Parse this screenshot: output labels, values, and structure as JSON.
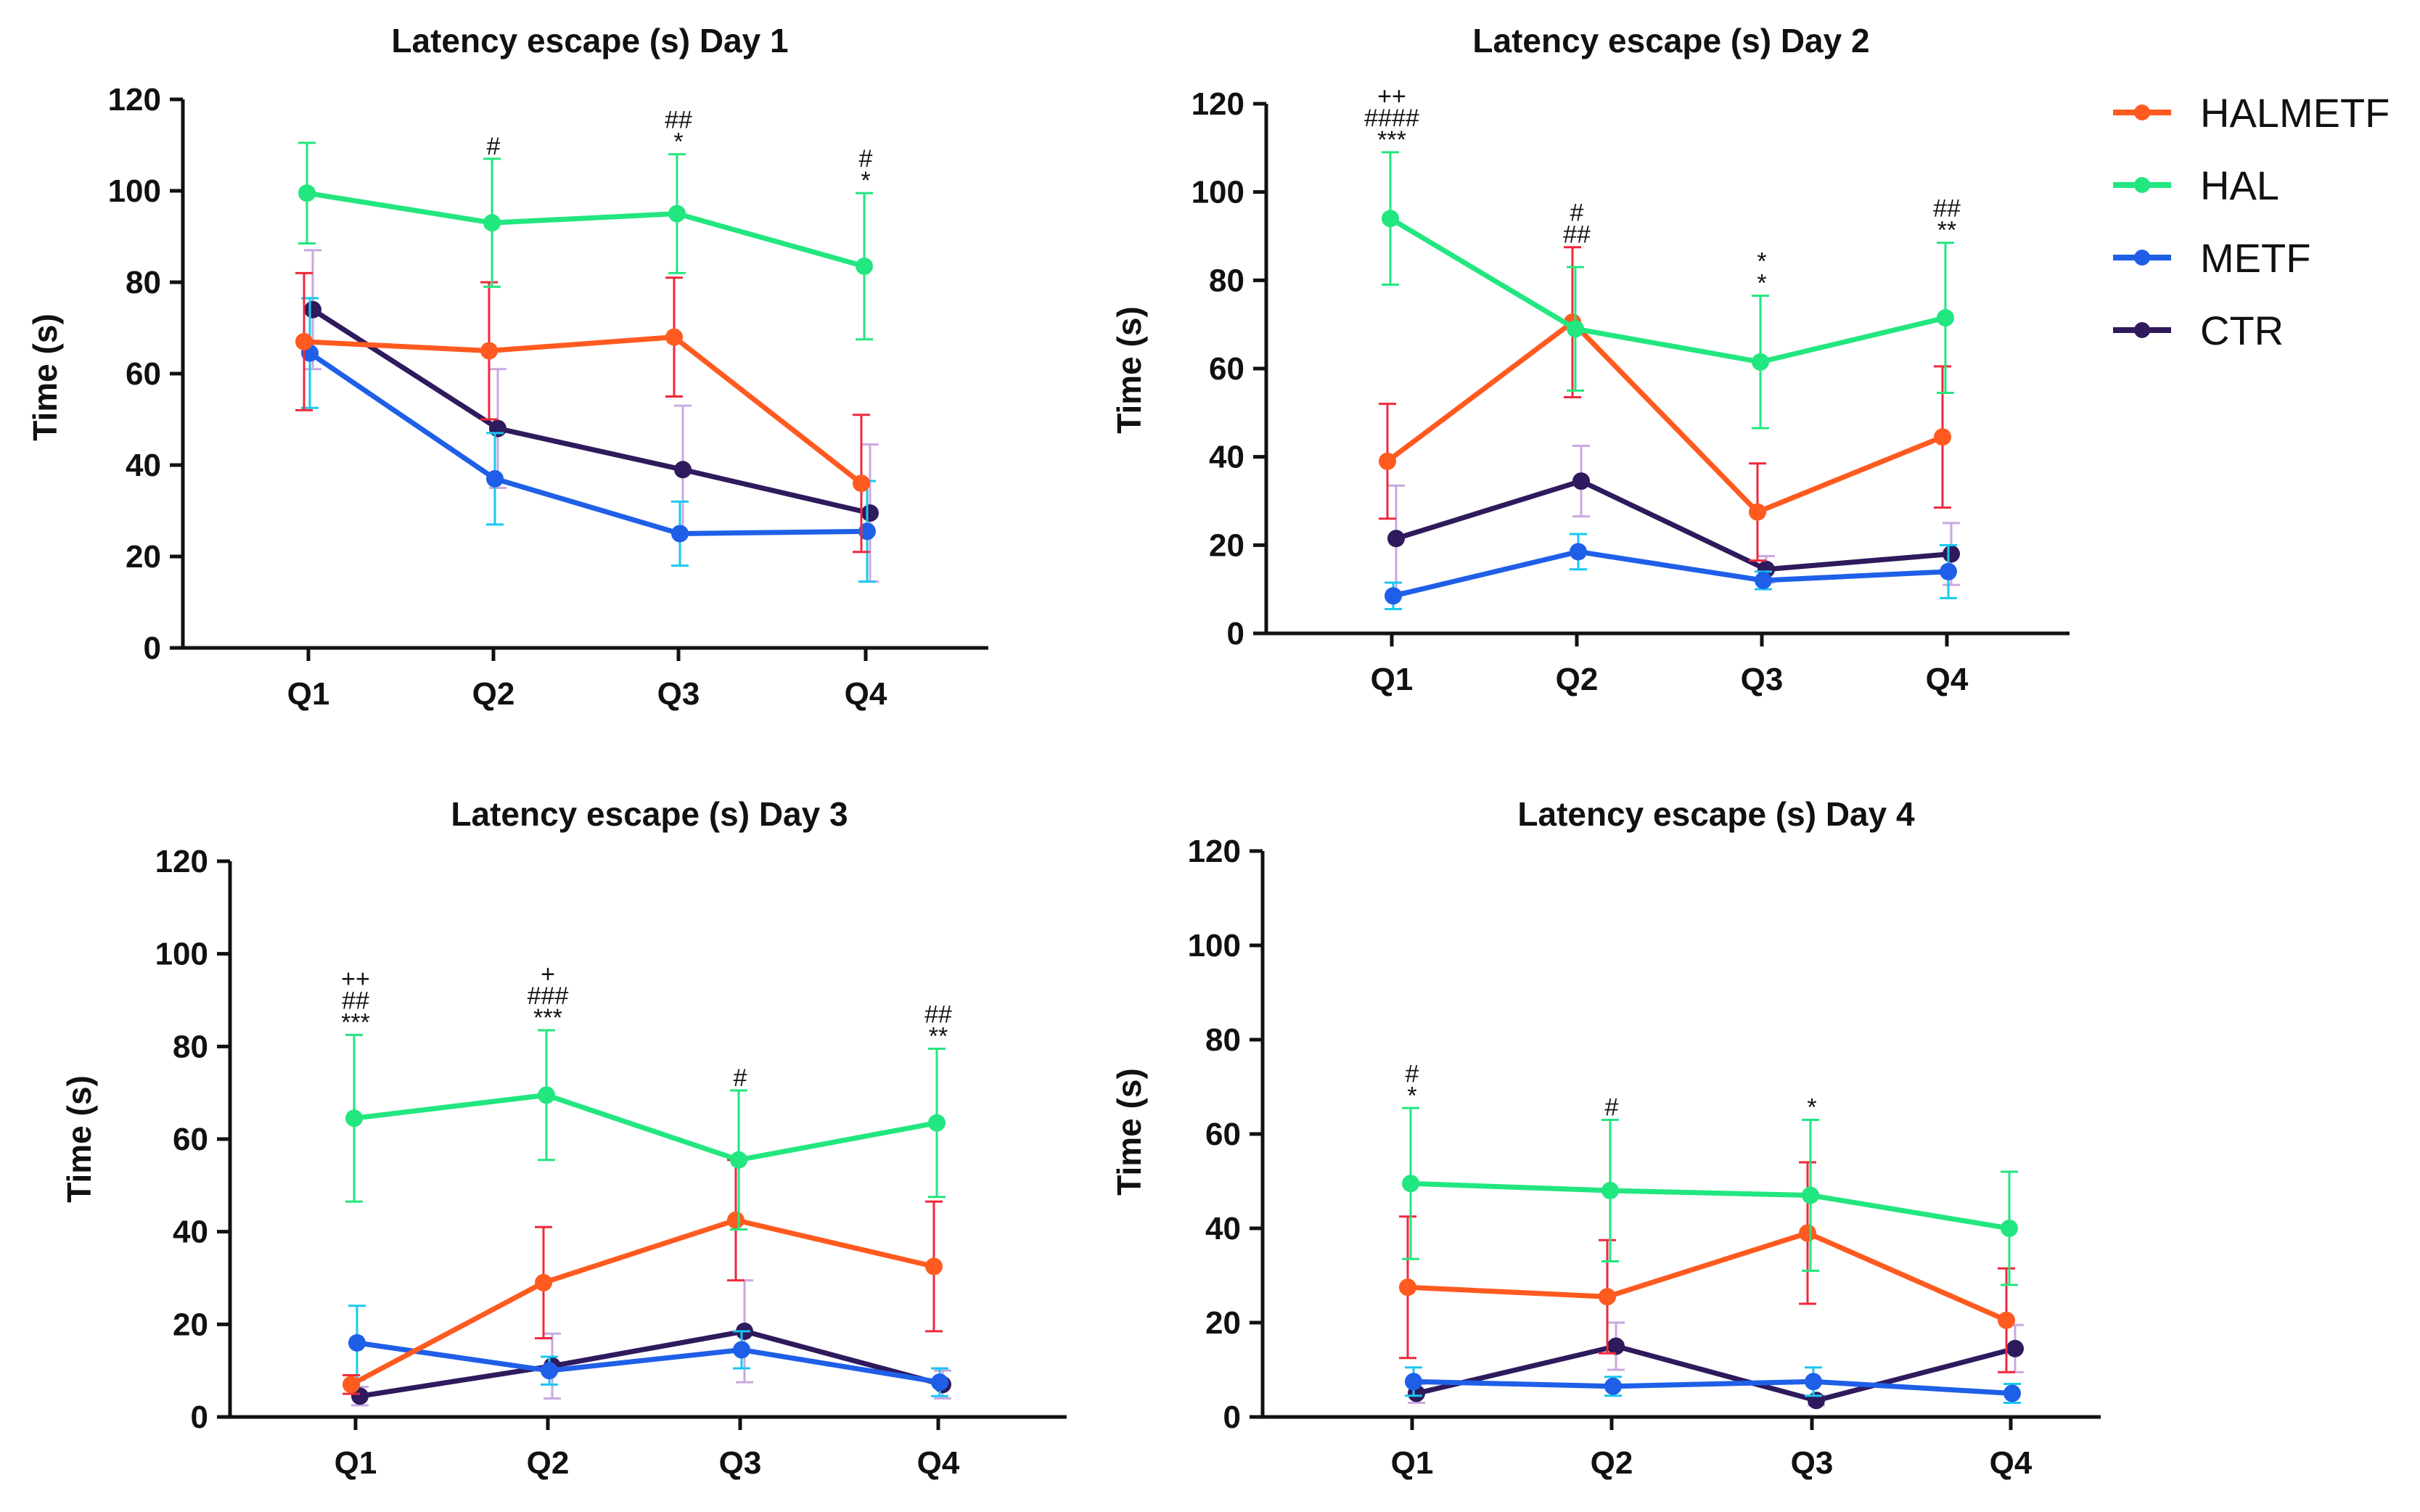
{
  "chart_data": [
    {
      "type": "line",
      "title": "Latency escape (s) Day 1",
      "ylabel": "Time (s)",
      "xlabel": "",
      "ylim": [
        0,
        120
      ],
      "yticks": [
        0,
        20,
        40,
        60,
        80,
        100,
        120
      ],
      "categories": [
        "Q1",
        "Q2",
        "Q3",
        "Q4"
      ],
      "series": [
        {
          "name": "HALMETF",
          "values": [
            67,
            65,
            68,
            36
          ],
          "error": [
            15,
            15,
            13,
            15
          ]
        },
        {
          "name": "HAL",
          "values": [
            99.5,
            93,
            95,
            83.5
          ],
          "error": [
            11,
            14,
            13,
            16
          ]
        },
        {
          "name": "METF",
          "values": [
            64.5,
            37,
            25,
            25.5
          ],
          "error": [
            12,
            10,
            7,
            11
          ]
        },
        {
          "name": "CTR",
          "values": [
            74,
            48,
            39,
            29.5
          ],
          "error": [
            13,
            13,
            14,
            15
          ]
        }
      ],
      "annotations": [
        {
          "category": "Q2",
          "lines": [
            "#"
          ]
        },
        {
          "category": "Q3",
          "lines": [
            "##",
            "*"
          ]
        },
        {
          "category": "Q4",
          "lines": [
            "#",
            "*"
          ]
        }
      ]
    },
    {
      "type": "line",
      "title": "Latency escape (s) Day 2",
      "ylabel": "Time (s)",
      "xlabel": "",
      "ylim": [
        0,
        120
      ],
      "yticks": [
        0,
        20,
        40,
        60,
        80,
        100,
        120
      ],
      "categories": [
        "Q1",
        "Q2",
        "Q3",
        "Q4"
      ],
      "series": [
        {
          "name": "HALMETF",
          "values": [
            39,
            70.5,
            27.5,
            44.5
          ],
          "error": [
            13,
            17,
            11,
            16
          ]
        },
        {
          "name": "HAL",
          "values": [
            94,
            69,
            61.5,
            71.5
          ],
          "error": [
            15,
            14,
            15,
            17
          ]
        },
        {
          "name": "METF",
          "values": [
            8.5,
            18.5,
            12,
            14
          ],
          "error": [
            3,
            4,
            2,
            6
          ]
        },
        {
          "name": "CTR",
          "values": [
            21.5,
            34.5,
            14.5,
            18
          ],
          "error": [
            12,
            8,
            3,
            7
          ]
        }
      ],
      "annotations": [
        {
          "category": "Q1",
          "lines": [
            "++",
            "####",
            "***"
          ]
        },
        {
          "category": "Q2",
          "lines": [
            "#",
            "##"
          ]
        },
        {
          "category": "Q3",
          "lines": [
            "*",
            "*"
          ]
        },
        {
          "category": "Q4",
          "lines": [
            "##",
            "**"
          ]
        }
      ]
    },
    {
      "type": "line",
      "title": "Latency escape (s) Day 3",
      "ylabel": "Time (s)",
      "xlabel": "",
      "ylim": [
        0,
        120
      ],
      "yticks": [
        0,
        20,
        40,
        60,
        80,
        100,
        120
      ],
      "categories": [
        "Q1",
        "Q2",
        "Q3",
        "Q4"
      ],
      "series": [
        {
          "name": "HALMETF",
          "values": [
            7,
            29,
            42.5,
            32.5
          ],
          "error": [
            2,
            12,
            13,
            14
          ]
        },
        {
          "name": "HAL",
          "values": [
            64.5,
            69.5,
            55.5,
            63.5
          ],
          "error": [
            18,
            14,
            15,
            16
          ]
        },
        {
          "name": "METF",
          "values": [
            16,
            10,
            14.5,
            7.5
          ],
          "error": [
            8,
            3,
            4,
            3
          ]
        },
        {
          "name": "CTR",
          "values": [
            4.5,
            11,
            18.5,
            7
          ],
          "error": [
            2,
            7,
            11,
            3
          ]
        }
      ],
      "annotations": [
        {
          "category": "Q1",
          "lines": [
            "++",
            "##",
            "***"
          ]
        },
        {
          "category": "Q2",
          "lines": [
            "+",
            "###",
            "***"
          ]
        },
        {
          "category": "Q3",
          "lines": [
            "#"
          ]
        },
        {
          "category": "Q4",
          "lines": [
            "##",
            "**"
          ]
        }
      ]
    },
    {
      "type": "line",
      "title": "Latency escape (s) Day 4",
      "ylabel": "Time (s)",
      "xlabel": "",
      "ylim": [
        0,
        120
      ],
      "yticks": [
        0,
        20,
        40,
        60,
        80,
        100,
        120
      ],
      "categories": [
        "Q1",
        "Q2",
        "Q3",
        "Q4"
      ],
      "series": [
        {
          "name": "HALMETF",
          "values": [
            27.5,
            25.5,
            39,
            20.5
          ],
          "error": [
            15,
            12,
            15,
            11
          ]
        },
        {
          "name": "HAL",
          "values": [
            49.5,
            48,
            47,
            40
          ],
          "error": [
            16,
            15,
            16,
            12
          ]
        },
        {
          "name": "METF",
          "values": [
            7.5,
            6.5,
            7.5,
            5
          ],
          "error": [
            3,
            2,
            3,
            2
          ]
        },
        {
          "name": "CTR",
          "values": [
            5,
            15,
            3.5,
            14.5
          ],
          "error": [
            2,
            5,
            1,
            5
          ]
        }
      ],
      "annotations": [
        {
          "category": "Q1",
          "lines": [
            "#",
            "*"
          ]
        },
        {
          "category": "Q2",
          "lines": [
            "#"
          ]
        },
        {
          "category": "Q3",
          "lines": [
            "*"
          ]
        }
      ]
    }
  ],
  "legend": {
    "items": [
      {
        "label": "HALMETF",
        "color": "#ff5a1f",
        "error_color": "#f0283c"
      },
      {
        "label": "HAL",
        "color": "#22e67f",
        "error_color": "#22e67f"
      },
      {
        "label": "METF",
        "color": "#1f5fe8",
        "error_color": "#18c8f0"
      },
      {
        "label": "CTR",
        "color": "#2e1a5c",
        "error_color": "#c9a8e0"
      }
    ]
  }
}
